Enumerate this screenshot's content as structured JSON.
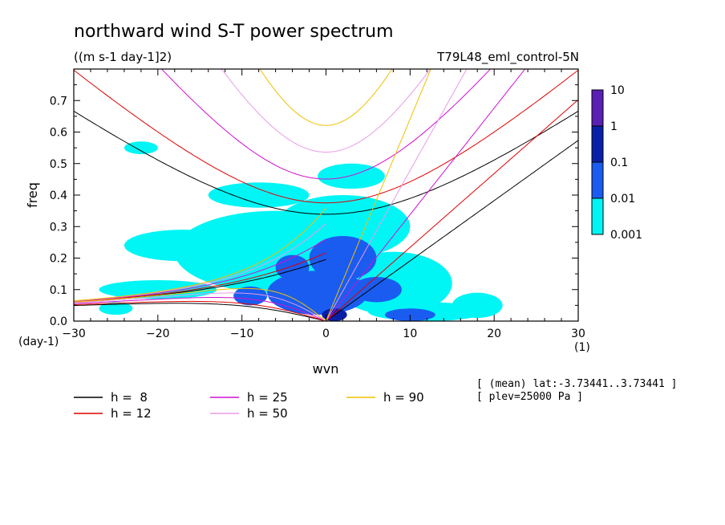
{
  "chart_data": {
    "type": "heatmap",
    "title": "northward wind S-T power spectrum",
    "units": "((m s-1 day-1]2)",
    "run_label": "T79L48_eml_control-5N",
    "xlabel": "wvn",
    "ylabel": "freq",
    "x_unit": "(1)",
    "y_unit": "(day-1)",
    "xlim": [
      -30,
      30
    ],
    "ylim": [
      0,
      0.8
    ],
    "x_ticks": [
      -30,
      -20,
      -10,
      0,
      10,
      20,
      30
    ],
    "x_tick_labels": [
      "−30",
      "−20",
      "−10",
      "0",
      "10",
      "20",
      "30"
    ],
    "y_ticks": [
      0.0,
      0.1,
      0.2,
      0.3,
      0.4,
      0.5,
      0.6,
      0.7
    ],
    "y_tick_labels": [
      "0.0",
      "0.1",
      "0.2",
      "0.3",
      "0.4",
      "0.5",
      "0.6",
      "0.7"
    ],
    "colorbar": {
      "levels": [
        "10",
        "1",
        "0.1",
        "0.01",
        "0.001"
      ],
      "colors": [
        "#5a1fb4",
        "#0a1fa8",
        "#1a5cf0",
        "#00f5f5"
      ]
    },
    "shaded_regions": [
      {
        "level": "0.001",
        "color": "#00f5f5",
        "blobs": [
          {
            "x": -6,
            "y": 0.22,
            "rx": 12,
            "ry": 0.13
          },
          {
            "x": 2,
            "y": 0.3,
            "rx": 8,
            "ry": 0.1
          },
          {
            "x": -17,
            "y": 0.24,
            "rx": 7,
            "ry": 0.05
          },
          {
            "x": -20,
            "y": 0.1,
            "rx": 7,
            "ry": 0.03
          },
          {
            "x": 8,
            "y": 0.12,
            "rx": 7,
            "ry": 0.1
          },
          {
            "x": 12,
            "y": 0.03,
            "rx": 7,
            "ry": 0.03
          },
          {
            "x": 18,
            "y": 0.05,
            "rx": 3,
            "ry": 0.04
          },
          {
            "x": -8,
            "y": 0.4,
            "rx": 6,
            "ry": 0.04
          },
          {
            "x": 3,
            "y": 0.46,
            "rx": 4,
            "ry": 0.04
          },
          {
            "x": -22,
            "y": 0.55,
            "rx": 2,
            "ry": 0.02
          },
          {
            "x": -25,
            "y": 0.04,
            "rx": 2,
            "ry": 0.02
          }
        ]
      },
      {
        "level": "0.01",
        "color": "#1a5cf0",
        "blobs": [
          {
            "x": -1,
            "y": 0.09,
            "rx": 6,
            "ry": 0.07
          },
          {
            "x": 2,
            "y": 0.2,
            "rx": 4,
            "ry": 0.07
          },
          {
            "x": -4,
            "y": 0.17,
            "rx": 2,
            "ry": 0.04
          },
          {
            "x": 6,
            "y": 0.1,
            "rx": 3,
            "ry": 0.04
          },
          {
            "x": 10,
            "y": 0.02,
            "rx": 3,
            "ry": 0.02
          },
          {
            "x": -9,
            "y": 0.08,
            "rx": 2,
            "ry": 0.03
          }
        ]
      },
      {
        "level": "0.1",
        "color": "#0a1fa8",
        "blobs": [
          {
            "x": 1,
            "y": 0.02,
            "rx": 1.5,
            "ry": 0.02
          }
        ]
      }
    ],
    "series": [
      {
        "name": "h =  8",
        "color": "#000000",
        "values": [
          8
        ]
      },
      {
        "name": "h = 12",
        "color": "#e00000",
        "values": [
          12
        ]
      },
      {
        "name": "h = 25",
        "color": "#d010d0",
        "values": [
          25
        ]
      },
      {
        "name": "h = 50",
        "color": "#e89be8",
        "values": [
          50
        ]
      },
      {
        "name": "h = 90",
        "color": "#f0c000",
        "values": [
          90
        ]
      }
    ],
    "annotations": [
      "[ (mean) lat:-3.73441..3.73441 ]",
      "[ plev=25000 Pa ]"
    ]
  }
}
